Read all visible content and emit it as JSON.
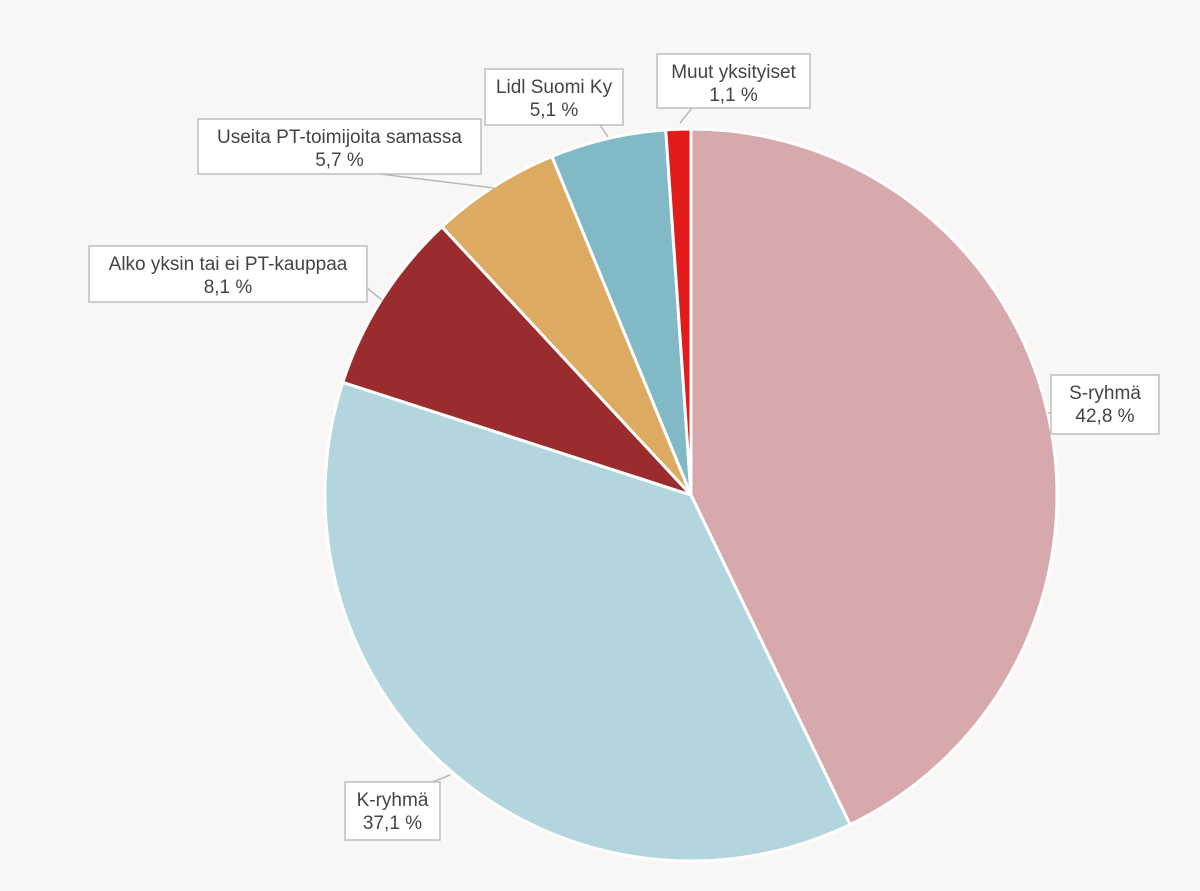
{
  "chart_data": {
    "type": "pie",
    "start_angle_deg": 0,
    "direction": "clockwise",
    "legend": "none",
    "slices": [
      {
        "label": "S-ryhmä",
        "value": 42.8,
        "value_label": "42,8 %",
        "color": "#d8a9ac"
      },
      {
        "label": "K-ryhmä",
        "value": 37.1,
        "value_label": "37,1 %",
        "color": "#b3d6de"
      },
      {
        "label": "Alko yksin tai ei PT-kauppaa",
        "value": 8.1,
        "value_label": "8,1 %",
        "color": "#9b2c2d"
      },
      {
        "label": "Useita PT-toimijoita samassa",
        "value": 5.7,
        "value_label": "5,7 %",
        "color": "#ddaa61"
      },
      {
        "label": "Lidl Suomi Ky",
        "value": 5.1,
        "value_label": "5,1 %",
        "color": "#82b9c7"
      },
      {
        "label": "Muut yksityiset",
        "value": 1.1,
        "value_label": "1,1 %",
        "color": "#e31b1b"
      }
    ]
  }
}
